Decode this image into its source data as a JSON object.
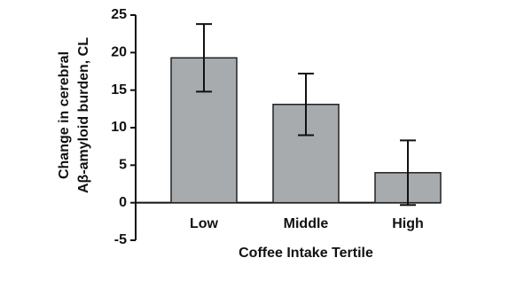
{
  "chart_data": {
    "type": "bar",
    "ylabel": [
      "Change in cerebral",
      "Aβ-amyloid burden, CL"
    ],
    "xlabel": "Coffee Intake Tertile",
    "categories": [
      "Low",
      "Middle",
      "High"
    ],
    "values": [
      19.3,
      13.1,
      4.0
    ],
    "errors": [
      4.5,
      4.1,
      4.3
    ],
    "color": "#a7abae",
    "ylim": [
      -5,
      25
    ],
    "yticks": [
      -5,
      0,
      5,
      10,
      15,
      20,
      25
    ]
  }
}
